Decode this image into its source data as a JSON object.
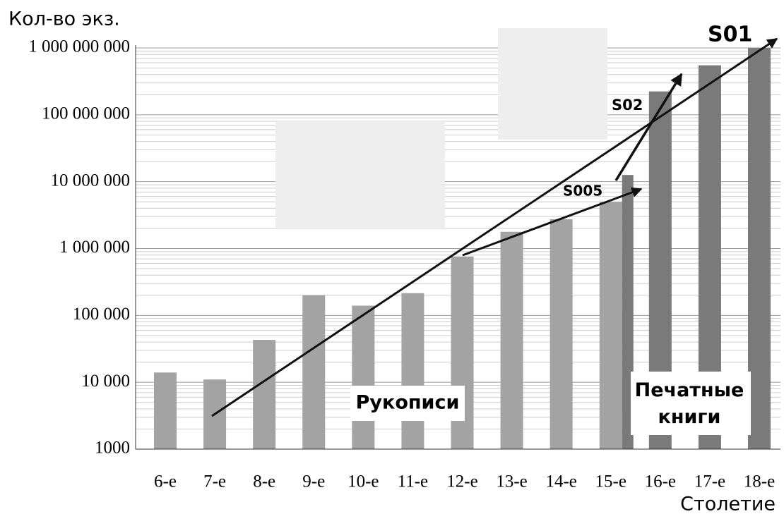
{
  "chart_data": {
    "type": "bar",
    "y_label": "Кол-во экз.",
    "x_label": "Столетие",
    "log_scale": true,
    "grid": true,
    "categories": [
      "6-е",
      "7-е",
      "8-е",
      "9-е",
      "10-е",
      "11-е",
      "12-е",
      "13-е",
      "14-е",
      "15-е",
      "16-е",
      "17-е",
      "18-е"
    ],
    "series": [
      {
        "name": "Рукописи",
        "color": "#a3a3a3",
        "values": [
          14000,
          11000,
          43000,
          200000,
          140000,
          215000,
          760000,
          1780000,
          2750000,
          5000000,
          null,
          null,
          null
        ]
      },
      {
        "name": "Печатные книги",
        "color": "#7a7a7a",
        "values": [
          null,
          null,
          null,
          null,
          null,
          null,
          null,
          null,
          null,
          12600000,
          224000000,
          550000000,
          1000000000
        ]
      }
    ],
    "ylim": [
      1000,
      1000000000
    ],
    "yticks": [
      1000,
      {
        "value": 10000,
        "label": "10 000"
      },
      {
        "value": 100000,
        "label": "100 000"
      },
      {
        "value": 1000000,
        "label": "1 000 000"
      },
      {
        "value": 10000000,
        "label": "10 000 000"
      },
      {
        "value": 100000000,
        "label": "100 000 000"
      },
      {
        "value": 1000000000,
        "label": "1 000 000 000"
      }
    ],
    "annotations": [
      "S01",
      "S02",
      "S005"
    ]
  }
}
